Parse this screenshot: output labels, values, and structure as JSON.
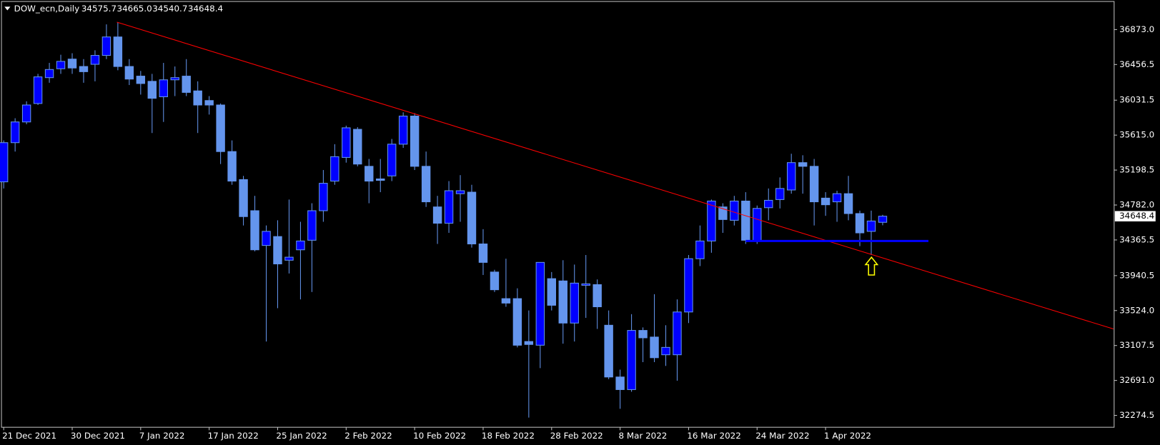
{
  "chart_data": {
    "type": "candlestick",
    "title": "DOW_ecn,Daily",
    "header_values": [
      "34575.7",
      "34665.0",
      "34540.7",
      "34648.4"
    ],
    "categories": [
      "21 Dec 2021",
      null,
      null,
      null,
      null,
      null,
      "30 Dec 2021",
      null,
      null,
      null,
      null,
      null,
      "7 Jan 2022",
      null,
      null,
      null,
      null,
      null,
      "17 Jan 2022",
      null,
      null,
      null,
      null,
      null,
      "25 Jan 2022",
      null,
      null,
      null,
      null,
      null,
      "2 Feb 2022",
      null,
      null,
      null,
      null,
      null,
      "10 Feb 2022",
      null,
      null,
      null,
      null,
      null,
      "18 Feb 2022",
      null,
      null,
      null,
      null,
      null,
      "28 Feb 2022",
      null,
      null,
      null,
      null,
      null,
      "8 Mar 2022",
      null,
      null,
      null,
      null,
      null,
      "16 Mar 2022",
      null,
      null,
      null,
      null,
      null,
      "24 Mar 2022",
      null,
      null,
      null,
      null,
      null,
      "1 Apr 2022",
      null,
      null,
      null,
      null,
      null
    ],
    "open": [
      35058,
      35525,
      35772,
      35992,
      36300,
      36406,
      36521,
      36433,
      36459,
      36565,
      36785,
      36433,
      36318,
      36256,
      36072,
      36274,
      36318,
      36142,
      36027,
      35974,
      35419,
      35085,
      34714,
      34300,
      34406,
      34124,
      34248,
      34362,
      34714,
      35067,
      35349,
      35684,
      35243,
      35093,
      35129,
      35507,
      35842,
      35243,
      34759,
      34565,
      34917,
      34935,
      34318,
      33983,
      33666,
      33666,
      33155,
      33111,
      33904,
      33877,
      33375,
      33825,
      33833,
      33349,
      32732,
      32582,
      33287,
      33208,
      32997,
      32997,
      33507,
      34142,
      34353,
      34759,
      34600,
      34829,
      34353,
      34750,
      34847,
      34961,
      35287,
      35243,
      34864,
      34820,
      34917,
      34680,
      34468,
      34575.7
    ],
    "high": [
      35552,
      35816,
      36018,
      36345,
      36476,
      36573,
      36591,
      36521,
      36626,
      36935,
      36961,
      36521,
      36380,
      36345,
      36476,
      36433,
      36521,
      36256,
      36080,
      35992,
      35552,
      35129,
      34891,
      34538,
      34600,
      34847,
      34582,
      34803,
      35199,
      35507,
      35728,
      35710,
      35331,
      35331,
      35569,
      35886,
      35877,
      35419,
      34891,
      35067,
      35138,
      35023,
      34494,
      34010,
      34142,
      33789,
      33525,
      34098,
      33983,
      34124,
      34072,
      34186,
      33895,
      33525,
      32820,
      33481,
      33323,
      33719,
      33349,
      33657,
      34186,
      34538,
      34847,
      34803,
      34891,
      34935,
      34776,
      34979,
      35111,
      35393,
      35375,
      35331,
      34935,
      34952,
      35129,
      34715,
      34715,
      34665
    ],
    "low": [
      34979,
      35419,
      35745,
      35974,
      36239,
      36345,
      36345,
      36239,
      36256,
      36521,
      36388,
      36212,
      36098,
      35640,
      35772,
      36080,
      36080,
      35640,
      35860,
      35270,
      35023,
      34538,
      34230,
      33155,
      33552,
      33966,
      33657,
      33745,
      34582,
      35023,
      35287,
      35243,
      34803,
      34935,
      35067,
      35463,
      35199,
      34759,
      34318,
      34450,
      34582,
      34274,
      33948,
      33745,
      33569,
      33085,
      32248,
      32838,
      33525,
      33129,
      33155,
      33437,
      33305,
      32706,
      32353,
      32556,
      32909,
      32909,
      32864,
      32688,
      33375,
      34054,
      34213,
      34450,
      34538,
      34318,
      34318,
      34600,
      34741,
      34917,
      34917,
      34538,
      34653,
      34582,
      34600,
      34292,
      34186,
      34540.7
    ],
    "close": [
      35525,
      35772,
      35974,
      36309,
      36397,
      36494,
      36415,
      36371,
      36565,
      36785,
      36433,
      36283,
      36230,
      36054,
      36274,
      36300,
      36124,
      35974,
      35974,
      35419,
      35067,
      34644,
      34248,
      34468,
      34080,
      34160,
      34353,
      34714,
      35041,
      35358,
      35702,
      35270,
      35067,
      35076,
      35507,
      35842,
      35243,
      34820,
      34565,
      34952,
      34952,
      34318,
      34098,
      33772,
      33613,
      33111,
      33120,
      34098,
      33587,
      33375,
      33851,
      33842,
      33569,
      32732,
      32582,
      33287,
      33199,
      32962,
      33085,
      33507,
      34142,
      34353,
      34829,
      34609,
      34829,
      34362,
      34741,
      34838,
      34979,
      35287,
      35243,
      34820,
      34785,
      34917,
      34680,
      34450,
      34591,
      34648.4
    ],
    "bull_color": "#0000ff",
    "bear_color": "#6495ed",
    "wick_color": "#6495ed",
    "ylim": [
      32133,
      37199
    ],
    "yticks": [
      {
        "value": 36873,
        "label": "36873.0"
      },
      {
        "value": 36456.5,
        "label": "36456.5"
      },
      {
        "value": 36031.5,
        "label": "36031.5"
      },
      {
        "value": 35615,
        "label": "35615.0"
      },
      {
        "value": 35198.5,
        "label": "35198.5"
      },
      {
        "value": 34782,
        "label": "34782.0"
      },
      {
        "value": 34365.5,
        "label": "34365.5"
      },
      {
        "value": 33940.5,
        "label": "33940.5"
      },
      {
        "value": 33524,
        "label": "33524.0"
      },
      {
        "value": 33107.5,
        "label": "33107.5"
      },
      {
        "value": 32691,
        "label": "32691.0"
      },
      {
        "value": 32274.5,
        "label": "32274.5"
      }
    ]
  }
}
